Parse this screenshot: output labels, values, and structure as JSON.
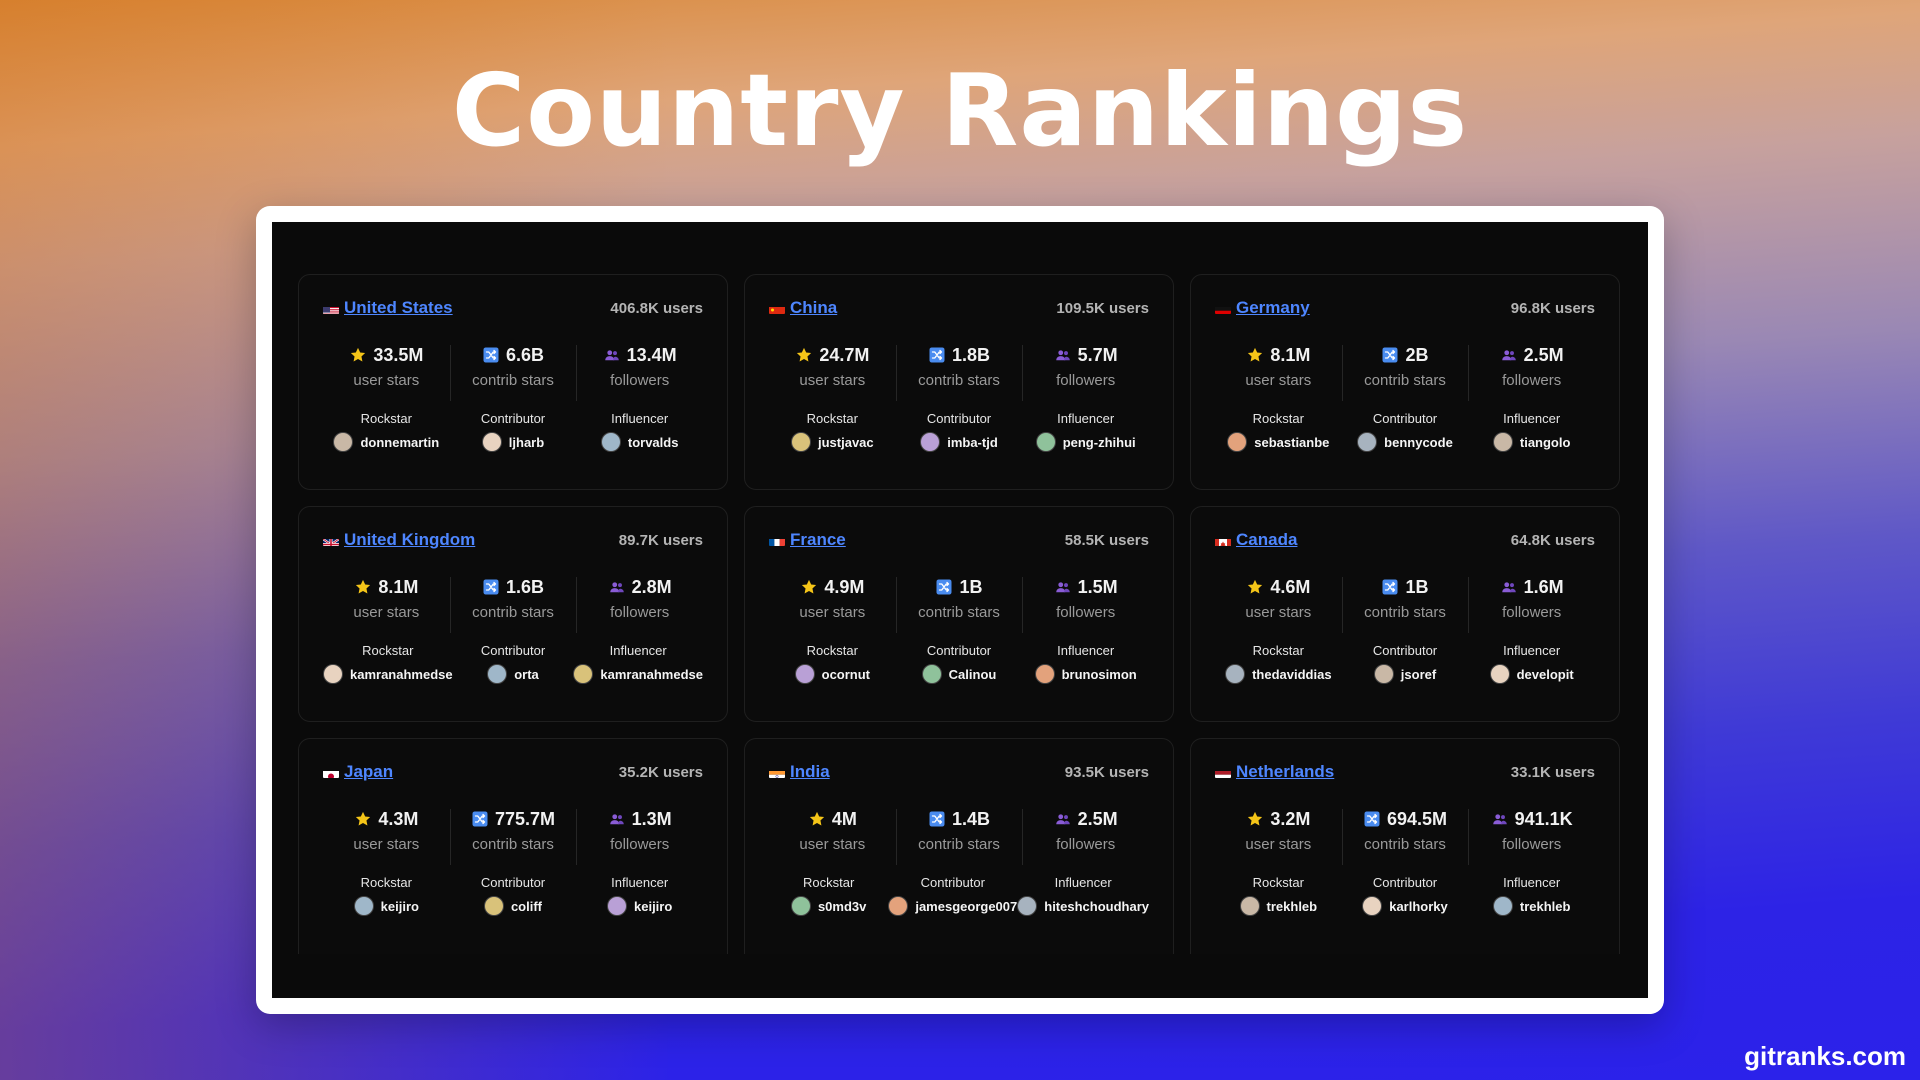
{
  "title": "Country Rankings",
  "brand": "gitranks.com",
  "labels": {
    "user_stars": "user stars",
    "contrib_stars": "contrib stars",
    "followers": "followers",
    "rockstar": "Rockstar",
    "contributor": "Contributor",
    "influencer": "Influencer"
  },
  "colors": {
    "link": "#4e86ff",
    "star": "#f5c518",
    "contrib_icon": "#4a8cf0",
    "followers_icon": "#8a5cd6"
  },
  "icons": {
    "user_stars": "star-icon",
    "contrib_stars": "shuffle-icon",
    "followers": "people-icon"
  },
  "countries": [
    {
      "name": "United States",
      "flag": "us-flag-icon",
      "users": "406.8K users",
      "user_stars": "33.5M",
      "contrib_stars": "6.6B",
      "followers": "13.4M",
      "rockstar": "donnemartin",
      "contributor": "ljharb",
      "influencer": "torvalds"
    },
    {
      "name": "China",
      "flag": "cn-flag-icon",
      "users": "109.5K users",
      "user_stars": "24.7M",
      "contrib_stars": "1.8B",
      "followers": "5.7M",
      "rockstar": "justjavac",
      "contributor": "imba-tjd",
      "influencer": "peng-zhihui"
    },
    {
      "name": "Germany",
      "flag": "de-flag-icon",
      "users": "96.8K users",
      "user_stars": "8.1M",
      "contrib_stars": "2B",
      "followers": "2.5M",
      "rockstar": "sebastianbe",
      "contributor": "bennycode",
      "influencer": "tiangolo"
    },
    {
      "name": "United Kingdom",
      "flag": "gb-flag-icon",
      "users": "89.7K users",
      "user_stars": "8.1M",
      "contrib_stars": "1.6B",
      "followers": "2.8M",
      "rockstar": "kamranahmedse",
      "contributor": "orta",
      "influencer": "kamranahmedse"
    },
    {
      "name": "France",
      "flag": "fr-flag-icon",
      "users": "58.5K users",
      "user_stars": "4.9M",
      "contrib_stars": "1B",
      "followers": "1.5M",
      "rockstar": "ocornut",
      "contributor": "Calinou",
      "influencer": "brunosimon"
    },
    {
      "name": "Canada",
      "flag": "ca-flag-icon",
      "users": "64.8K users",
      "user_stars": "4.6M",
      "contrib_stars": "1B",
      "followers": "1.6M",
      "rockstar": "thedaviddias",
      "contributor": "jsoref",
      "influencer": "developit"
    },
    {
      "name": "Japan",
      "flag": "jp-flag-icon",
      "users": "35.2K users",
      "user_stars": "4.3M",
      "contrib_stars": "775.7M",
      "followers": "1.3M",
      "rockstar": "keijiro",
      "contributor": "coliff",
      "influencer": "keijiro"
    },
    {
      "name": "India",
      "flag": "in-flag-icon",
      "users": "93.5K users",
      "user_stars": "4M",
      "contrib_stars": "1.4B",
      "followers": "2.5M",
      "rockstar": "s0md3v",
      "contributor": "jamesgeorge007",
      "influencer": "hiteshchoudhary"
    },
    {
      "name": "Netherlands",
      "flag": "nl-flag-icon",
      "users": "33.1K users",
      "user_stars": "3.2M",
      "contrib_stars": "694.5M",
      "followers": "941.1K",
      "rockstar": "trekhleb",
      "contributor": "karlhorky",
      "influencer": "trekhleb"
    }
  ]
}
